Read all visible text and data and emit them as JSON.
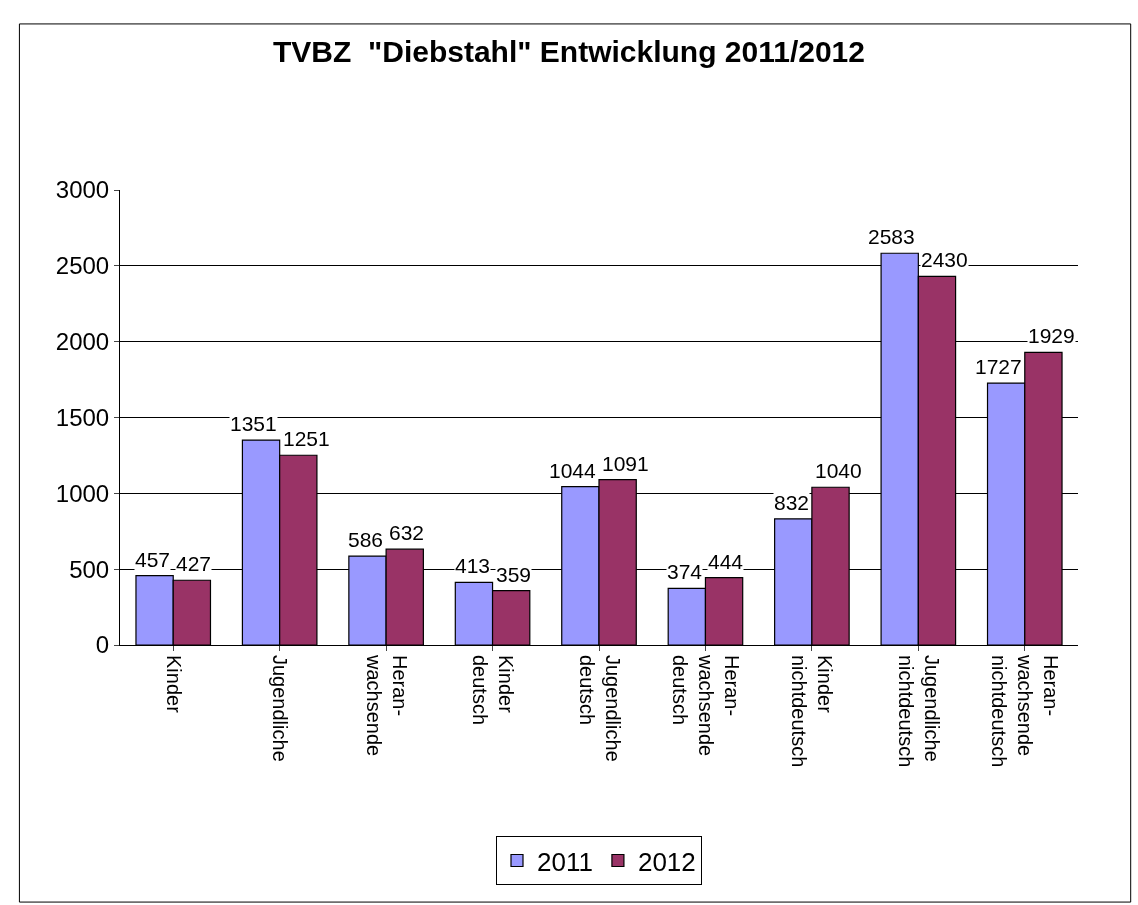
{
  "chart_data": {
    "type": "bar",
    "title": "TVBZ  \"Diebstahl\" Entwicklung 2011/2012",
    "categories": [
      "Kinder",
      "Jugendliche",
      "Heran-\nwachsende",
      "Kinder\ndeutsch",
      "Jugendliche\ndeutsch",
      "Heran-\nwachsende\ndeutsch",
      "Kinder\nnichtdeutsch",
      "Jugendliche\nnichtdeutsch",
      "Heran-\nwachsende\nnichtdeutsch"
    ],
    "series": [
      {
        "name": "2011",
        "color": "#9999ff",
        "values": [
          457,
          1351,
          586,
          413,
          1044,
          374,
          832,
          2583,
          1727
        ]
      },
      {
        "name": "2012",
        "color": "#993366",
        "values": [
          427,
          1251,
          632,
          359,
          1091,
          444,
          1040,
          2430,
          1929
        ]
      }
    ],
    "ylim": [
      0,
      3000
    ],
    "yticks": [
      0,
      500,
      1000,
      1500,
      2000,
      2500,
      3000
    ],
    "grid": "y",
    "legend": "bottom",
    "data_labels": true
  }
}
